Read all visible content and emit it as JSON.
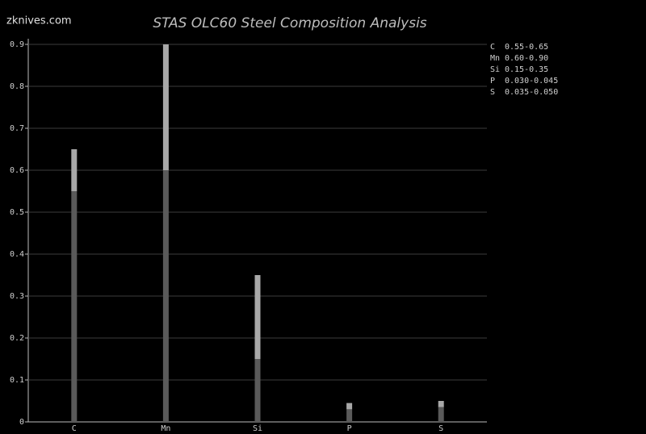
{
  "chart_data": {
    "type": "range-bar",
    "title": "STAS OLC60 Steel Composition Analysis",
    "watermark": "zknives.com",
    "categories": [
      "C",
      "Mn",
      "Si",
      "P",
      "S"
    ],
    "series": [
      {
        "name": "min",
        "color": "#5a5a5a",
        "values": [
          0.55,
          0.6,
          0.15,
          0.03,
          0.035
        ]
      },
      {
        "name": "max",
        "color": "#a8a8a8",
        "values": [
          0.65,
          0.9,
          0.35,
          0.045,
          0.05
        ]
      }
    ],
    "legend": [
      {
        "symbol": "C",
        "range": "0.55-0.65"
      },
      {
        "symbol": "Mn",
        "range": "0.60-0.90"
      },
      {
        "symbol": "Si",
        "range": "0.15-0.35"
      },
      {
        "symbol": "P",
        "range": "0.030-0.045"
      },
      {
        "symbol": "S",
        "range": "0.035-0.050"
      }
    ],
    "ylim": [
      0,
      0.9
    ],
    "yticks": [
      0,
      0.1,
      0.2,
      0.3,
      0.4,
      0.5,
      0.6,
      0.7,
      0.8,
      0.9
    ],
    "grid": true
  }
}
